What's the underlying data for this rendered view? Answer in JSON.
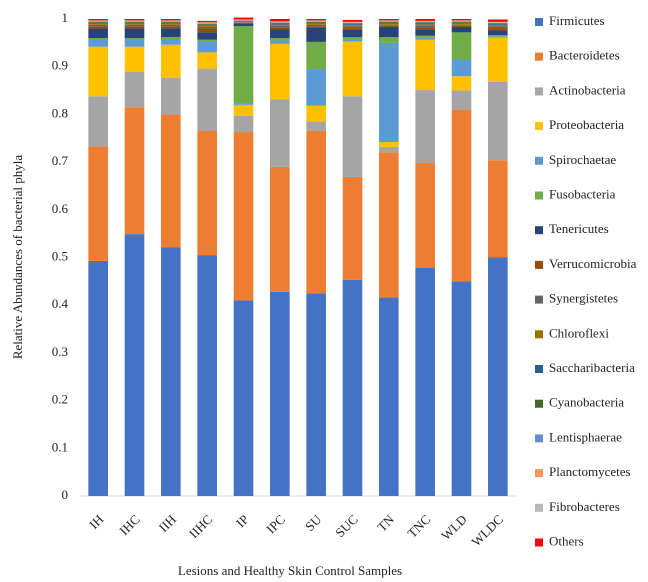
{
  "chart_data": {
    "type": "stacked-bar",
    "y_label": "Relative Abundances of bacterial phyla",
    "x_label": "Lesions and Healthy Skin Control Samples",
    "categories": [
      "IH",
      "IHC",
      "IIH",
      "IIHC",
      "IP",
      "IPC",
      "SU",
      "SUC",
      "TN",
      "TNC",
      "WLD",
      "WLDC"
    ],
    "ylim": [
      0,
      1
    ],
    "yticks": [
      0,
      0.1,
      0.2,
      0.3,
      0.4,
      0.5,
      0.6,
      0.7,
      0.8,
      0.9,
      1
    ],
    "series": [
      {
        "name": "Firmicutes",
        "color": "#4472c4",
        "values": [
          0.493,
          0.549,
          0.521,
          0.505,
          0.41,
          0.428,
          0.425,
          0.453,
          0.416,
          0.478,
          0.45,
          0.5
        ]
      },
      {
        "name": "Bacteroidetes",
        "color": "#ed7d31",
        "values": [
          0.24,
          0.266,
          0.279,
          0.261,
          0.353,
          0.262,
          0.341,
          0.216,
          0.304,
          0.22,
          0.36,
          0.204
        ]
      },
      {
        "name": "Actinobacteria",
        "color": "#a5a5a5",
        "values": [
          0.105,
          0.074,
          0.077,
          0.13,
          0.034,
          0.142,
          0.019,
          0.169,
          0.012,
          0.153,
          0.04,
          0.164
        ]
      },
      {
        "name": "Proteobacteria",
        "color": "#ffc000",
        "values": [
          0.104,
          0.053,
          0.069,
          0.034,
          0.023,
          0.116,
          0.033,
          0.115,
          0.01,
          0.106,
          0.03,
          0.093
        ]
      },
      {
        "name": "Spirochaetae",
        "color": "#5b9bd5",
        "values": [
          0.015,
          0.015,
          0.011,
          0.023,
          0.003,
          0.007,
          0.077,
          0.005,
          0.208,
          0.005,
          0.035,
          0.002
        ]
      },
      {
        "name": "Fusobacteria",
        "color": "#70ad47",
        "values": [
          0.003,
          0.003,
          0.005,
          0.004,
          0.162,
          0.005,
          0.057,
          0.004,
          0.012,
          0.003,
          0.057,
          0.003
        ]
      },
      {
        "name": "Tenericutes",
        "color": "#264478",
        "values": [
          0.02,
          0.02,
          0.018,
          0.015,
          0.006,
          0.018,
          0.03,
          0.015,
          0.022,
          0.012,
          0.012,
          0.01
        ]
      },
      {
        "name": "Verrucomicrobia",
        "color": "#9e480e",
        "values": [
          0.004,
          0.004,
          0.004,
          0.008,
          0.001,
          0.004,
          0.002,
          0.004,
          0.002,
          0.006,
          0.002,
          0.005
        ]
      },
      {
        "name": "Synergistetes",
        "color": "#636363",
        "values": [
          0.004,
          0.004,
          0.004,
          0.004,
          0.001,
          0.004,
          0.004,
          0.004,
          0.002,
          0.004,
          0.002,
          0.004
        ]
      },
      {
        "name": "Chloroflexi",
        "color": "#997300",
        "values": [
          0.002,
          0.002,
          0.002,
          0.002,
          0.001,
          0.002,
          0.002,
          0.002,
          0.002,
          0.002,
          0.002,
          0.002
        ]
      },
      {
        "name": "Saccharibacteria",
        "color": "#255e91",
        "values": [
          0.002,
          0.002,
          0.002,
          0.002,
          0.001,
          0.002,
          0.002,
          0.002,
          0.002,
          0.002,
          0.002,
          0.002
        ]
      },
      {
        "name": "Cyanobacteria",
        "color": "#43682b",
        "values": [
          0.002,
          0.002,
          0.002,
          0.002,
          0.001,
          0.002,
          0.002,
          0.002,
          0.002,
          0.002,
          0.002,
          0.002
        ]
      },
      {
        "name": "Lentisphaerae",
        "color": "#698ed0",
        "values": [
          0.001,
          0.001,
          0.001,
          0.001,
          0.001,
          0.001,
          0.001,
          0.001,
          0.001,
          0.001,
          0.001,
          0.001
        ]
      },
      {
        "name": "Planctomycetes",
        "color": "#f1975a",
        "values": [
          0.001,
          0.001,
          0.001,
          0.001,
          0.001,
          0.001,
          0.001,
          0.001,
          0.001,
          0.001,
          0.001,
          0.001
        ]
      },
      {
        "name": "Fibrobacteres",
        "color": "#b7b7b7",
        "values": [
          0.001,
          0.001,
          0.001,
          0.001,
          0.001,
          0.001,
          0.001,
          0.001,
          0.001,
          0.001,
          0.001,
          0.001
        ]
      },
      {
        "name": "Others",
        "color": "#ff0000",
        "values": [
          0.003,
          0.003,
          0.003,
          0.003,
          0.004,
          0.005,
          0.003,
          0.004,
          0.003,
          0.004,
          0.003,
          0.005
        ]
      }
    ]
  }
}
